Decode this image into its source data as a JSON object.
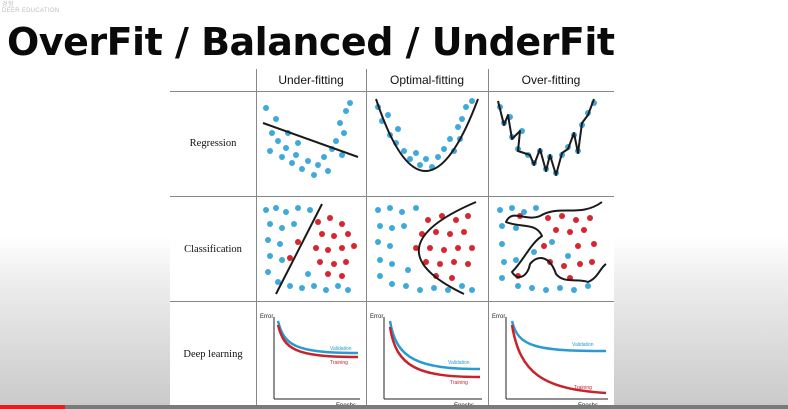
{
  "watermark": {
    "line1": "경험",
    "line2": "DEER EDUCATION"
  },
  "slide": {
    "title": "OverFit / Balanced / UnderFit"
  },
  "figure": {
    "columns": [
      "Under-fitting",
      "Optimal-fitting",
      "Over-fitting"
    ],
    "rows": [
      "Regression",
      "Classification",
      "Deep learning"
    ],
    "deep_learning": {
      "y_axis": "Error",
      "x_axis": "Epochs",
      "validation_label": "Validation",
      "training_label": "Training"
    }
  },
  "colors": {
    "blue_point": "#3fa9dc",
    "red_point": "#d7262f",
    "validation_curve": "#2a9bd2",
    "training_curve": "#c7232b",
    "fit_line": "#1a1a1a",
    "progress_played": "#e21e1e"
  },
  "video": {
    "progress_fraction": 0.082
  }
}
